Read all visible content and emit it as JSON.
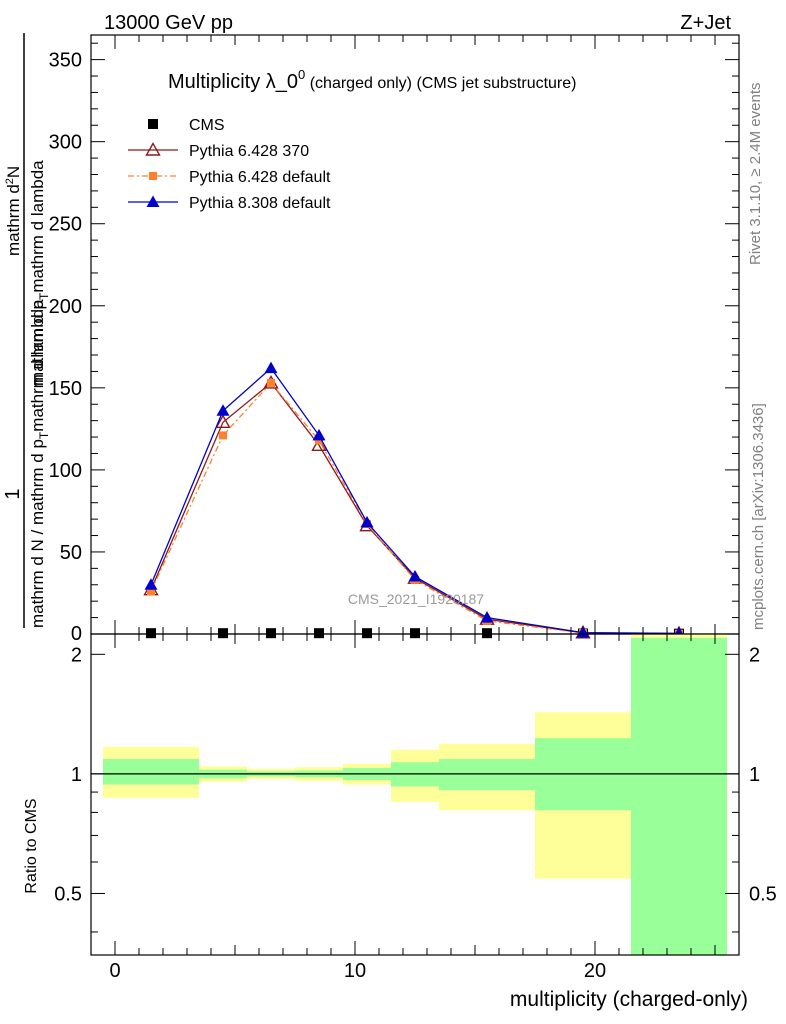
{
  "header": {
    "energy": "13000 GeV pp",
    "process": "Z+Jet"
  },
  "side_labels": {
    "rivet": "Rivet 3.1.10, ≥ 2.4M events",
    "source": "mcplots.cern.ch [arXiv:1306.3436]"
  },
  "watermark": "CMS_2021_I1920187",
  "main_title": {
    "main": "Multiplicity λ_0",
    "sup": "0",
    "tail": " (charged only) (CMS jet substructure)"
  },
  "ylabel_main": {
    "numerator": "1",
    "denominator": "mathrm d N / mathrm d p",
    "denominator_sub": "T",
    "denominator_tail": "mathrm d lambda",
    "inner_num": "mathrm d",
    "inner_num_sup": "2",
    "inner_num_tail": "N",
    "inner_den": "mathrm d p",
    "inner_den_sub": "T",
    "inner_den_tail": "mathrm d lambda"
  },
  "colors": {
    "cms": "#000000",
    "py6_370": "#8b1a1a",
    "py6_default": "#ff7f2a",
    "py8": "#0000cc",
    "band_inner": "#99ff99",
    "band_outer": "#ffff99"
  },
  "chart_data": [
    {
      "type": "line",
      "title": "Multiplicity λ_0^0 (charged only) (CMS jet substructure)",
      "ylabel": "1 / mathrm d N / mathrm d p_T mathrm d lambda · mathrm d^2N / mathrm d p_T mathrm d lambda",
      "xlim": [
        -1,
        26
      ],
      "ylim": [
        0,
        365
      ],
      "yticks": [
        50,
        100,
        150,
        200,
        250,
        300,
        350
      ],
      "legend_position": "top-left",
      "series": [
        {
          "name": "CMS",
          "marker": "square",
          "x": [
            1.5,
            4.5,
            6.5,
            8.5,
            10.5,
            12.5,
            15.5,
            19.5,
            23.5
          ],
          "y": [
            0.5,
            0.5,
            0.5,
            0.5,
            0.5,
            0.5,
            0.5,
            0.3,
            0.2
          ]
        },
        {
          "name": "Pythia 6.428 370",
          "marker": "open-triangle",
          "x": [
            1.5,
            4.5,
            6.5,
            8.5,
            10.5,
            12.5,
            15.5,
            19.5,
            23.5
          ],
          "y": [
            27,
            129,
            153,
            115,
            66,
            34,
            9,
            0.7,
            0.3
          ]
        },
        {
          "name": "Pythia 6.428 default",
          "marker": "filled-square",
          "line_style": "dashdot",
          "x": [
            1.5,
            4.5,
            6.5,
            8.5,
            10.5,
            12.5,
            15.5,
            19.5,
            23.5
          ],
          "y": [
            26,
            121,
            153,
            118,
            67,
            33,
            8,
            0.6,
            0.2
          ]
        },
        {
          "name": "Pythia 8.308 default",
          "marker": "filled-triangle",
          "x": [
            1.5,
            4.5,
            6.5,
            8.5,
            10.5,
            12.5,
            15.5,
            19.5,
            23.5
          ],
          "y": [
            30,
            136,
            162,
            121,
            68,
            35,
            10,
            0.8,
            0.4
          ]
        }
      ]
    },
    {
      "type": "area",
      "xlabel": "multiplicity (charged-only)",
      "ylabel": "Ratio to CMS",
      "xlim": [
        -1,
        26
      ],
      "ylim": [
        0.35,
        2.25
      ],
      "xticks": [
        0,
        10,
        20
      ],
      "yticks": [
        0.5,
        1,
        2
      ],
      "bins": [
        {
          "lo": -0.5,
          "hi": 3.5,
          "inner": [
            0.94,
            1.09
          ],
          "outer": [
            0.87,
            1.17
          ]
        },
        {
          "lo": 3.5,
          "hi": 5.5,
          "inner": [
            0.975,
            1.025
          ],
          "outer": [
            0.955,
            1.045
          ]
        },
        {
          "lo": 5.5,
          "hi": 7.5,
          "inner": [
            0.985,
            1.015
          ],
          "outer": [
            0.97,
            1.03
          ]
        },
        {
          "lo": 7.5,
          "hi": 9.5,
          "inner": [
            0.98,
            1.02
          ],
          "outer": [
            0.96,
            1.04
          ]
        },
        {
          "lo": 9.5,
          "hi": 11.5,
          "inner": [
            0.965,
            1.035
          ],
          "outer": [
            0.94,
            1.06
          ]
        },
        {
          "lo": 11.5,
          "hi": 13.5,
          "inner": [
            0.93,
            1.07
          ],
          "outer": [
            0.85,
            1.15
          ]
        },
        {
          "lo": 13.5,
          "hi": 17.5,
          "inner": [
            0.91,
            1.09
          ],
          "outer": [
            0.81,
            1.19
          ]
        },
        {
          "lo": 17.5,
          "hi": 21.5,
          "inner": [
            0.81,
            1.23
          ],
          "outer": [
            0.545,
            1.43
          ]
        },
        {
          "lo": 21.5,
          "hi": 25.5,
          "inner": [
            0.35,
            2.2
          ],
          "outer": [
            0.35,
            2.3
          ]
        }
      ]
    }
  ]
}
